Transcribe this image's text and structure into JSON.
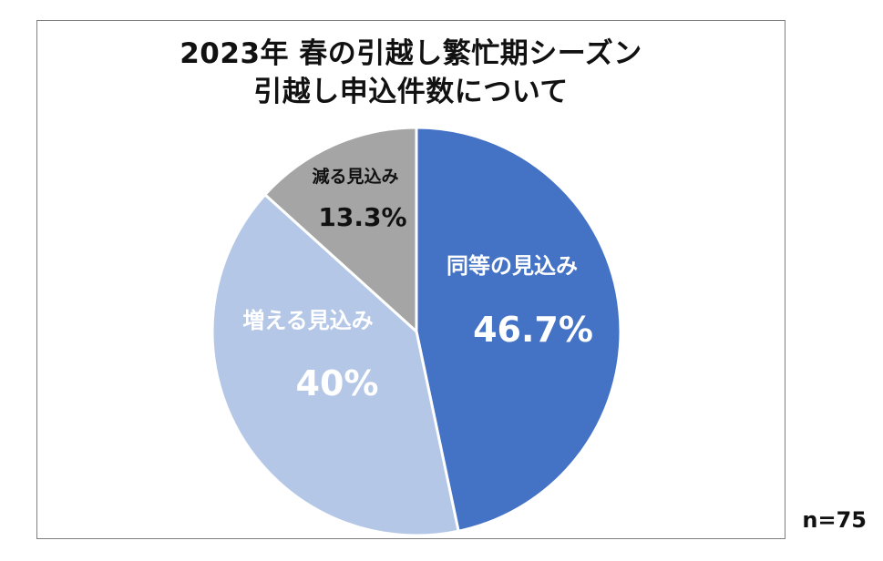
{
  "chart_data": {
    "type": "pie",
    "title_line1": "2023年 春の引越し繁忙期シーズン",
    "title_line2": "引越し申込件数について",
    "slices": [
      {
        "label": "同等の見込み",
        "value": 46.7,
        "value_label": "46.7%",
        "color": "#4472c4"
      },
      {
        "label": "増える見込み",
        "value": 40.0,
        "value_label": "40%",
        "color": "#b4c7e7"
      },
      {
        "label": "減る見込み",
        "value": 13.3,
        "value_label": "13.3%",
        "color": "#a5a5a5"
      }
    ],
    "start": "12 o'clock, clockwise",
    "legend": "none"
  },
  "sample_size": "n=75"
}
